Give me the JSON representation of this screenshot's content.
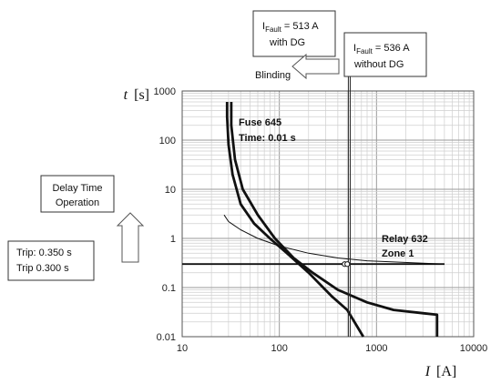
{
  "chart_data": {
    "type": "line",
    "xscale": "log",
    "yscale": "log",
    "xlim": [
      10,
      10000
    ],
    "ylim": [
      0.01,
      1000
    ],
    "grid": true,
    "xlabel": {
      "italic": "I",
      "unit": "[A]"
    },
    "ylabel": {
      "italic": "t",
      "unit": "[s]"
    },
    "x_ticks": [
      "10",
      "100",
      "1000",
      "10000"
    ],
    "y_ticks": [
      "0.01",
      "0.1",
      "1",
      "10",
      "100",
      "1000"
    ],
    "series": [
      {
        "id": "fuse-boundary-1",
        "style": "thick",
        "points": [
          [
            32,
            600
          ],
          [
            32,
            200
          ],
          [
            35,
            40
          ],
          [
            42,
            10
          ],
          [
            60,
            3
          ],
          [
            90,
            1
          ],
          [
            140,
            0.4
          ],
          [
            220,
            0.2
          ],
          [
            400,
            0.09
          ],
          [
            800,
            0.05
          ],
          [
            1500,
            0.035
          ],
          [
            3000,
            0.03
          ],
          [
            4200,
            0.028
          ],
          [
            4200,
            0.01
          ]
        ]
      },
      {
        "id": "fuse-boundary-2",
        "style": "thick",
        "points": [
          [
            29,
            600
          ],
          [
            29,
            300
          ],
          [
            30,
            80
          ],
          [
            33,
            20
          ],
          [
            40,
            5
          ],
          [
            55,
            2
          ],
          [
            80,
            1
          ],
          [
            120,
            0.5
          ],
          [
            200,
            0.2
          ],
          [
            350,
            0.065
          ],
          [
            500,
            0.035
          ],
          [
            730,
            0.01
          ]
        ]
      },
      {
        "id": "relay-632-zone-1",
        "style": "thin",
        "points": [
          [
            27,
            3
          ],
          [
            30,
            2.2
          ],
          [
            40,
            1.5
          ],
          [
            60,
            1
          ],
          [
            100,
            0.7
          ],
          [
            200,
            0.5
          ],
          [
            400,
            0.4
          ],
          [
            800,
            0.35
          ],
          [
            5000,
            0.3
          ]
        ]
      },
      {
        "id": "delay-line",
        "style": "medium",
        "points": [
          [
            10,
            0.3
          ],
          [
            5000,
            0.3
          ]
        ]
      }
    ],
    "vertical_markers": [
      {
        "x": 513,
        "label_main": "I",
        "label_sub": "Fault",
        "label_rest": " = 513 A",
        "label_line2": "with DG"
      },
      {
        "x": 536,
        "label_main": "I",
        "label_sub": "Fault",
        "label_rest": " = 536 A",
        "label_line2": "without DG"
      }
    ],
    "intersection_points": [
      [
        470,
        0.3
      ],
      [
        500,
        0.3
      ]
    ],
    "annotations": {
      "fuse_line1": "Fuse 645",
      "fuse_line2": "Time: 0.01 s",
      "relay_line1": "Relay 632",
      "relay_line2": "Zone 1",
      "blinding": "Blinding",
      "delay_line1": "Delay Time",
      "delay_line2": "Operation",
      "trip_line1": "Trip: 0.350 s",
      "trip_line2": "Trip 0.300 s"
    }
  }
}
